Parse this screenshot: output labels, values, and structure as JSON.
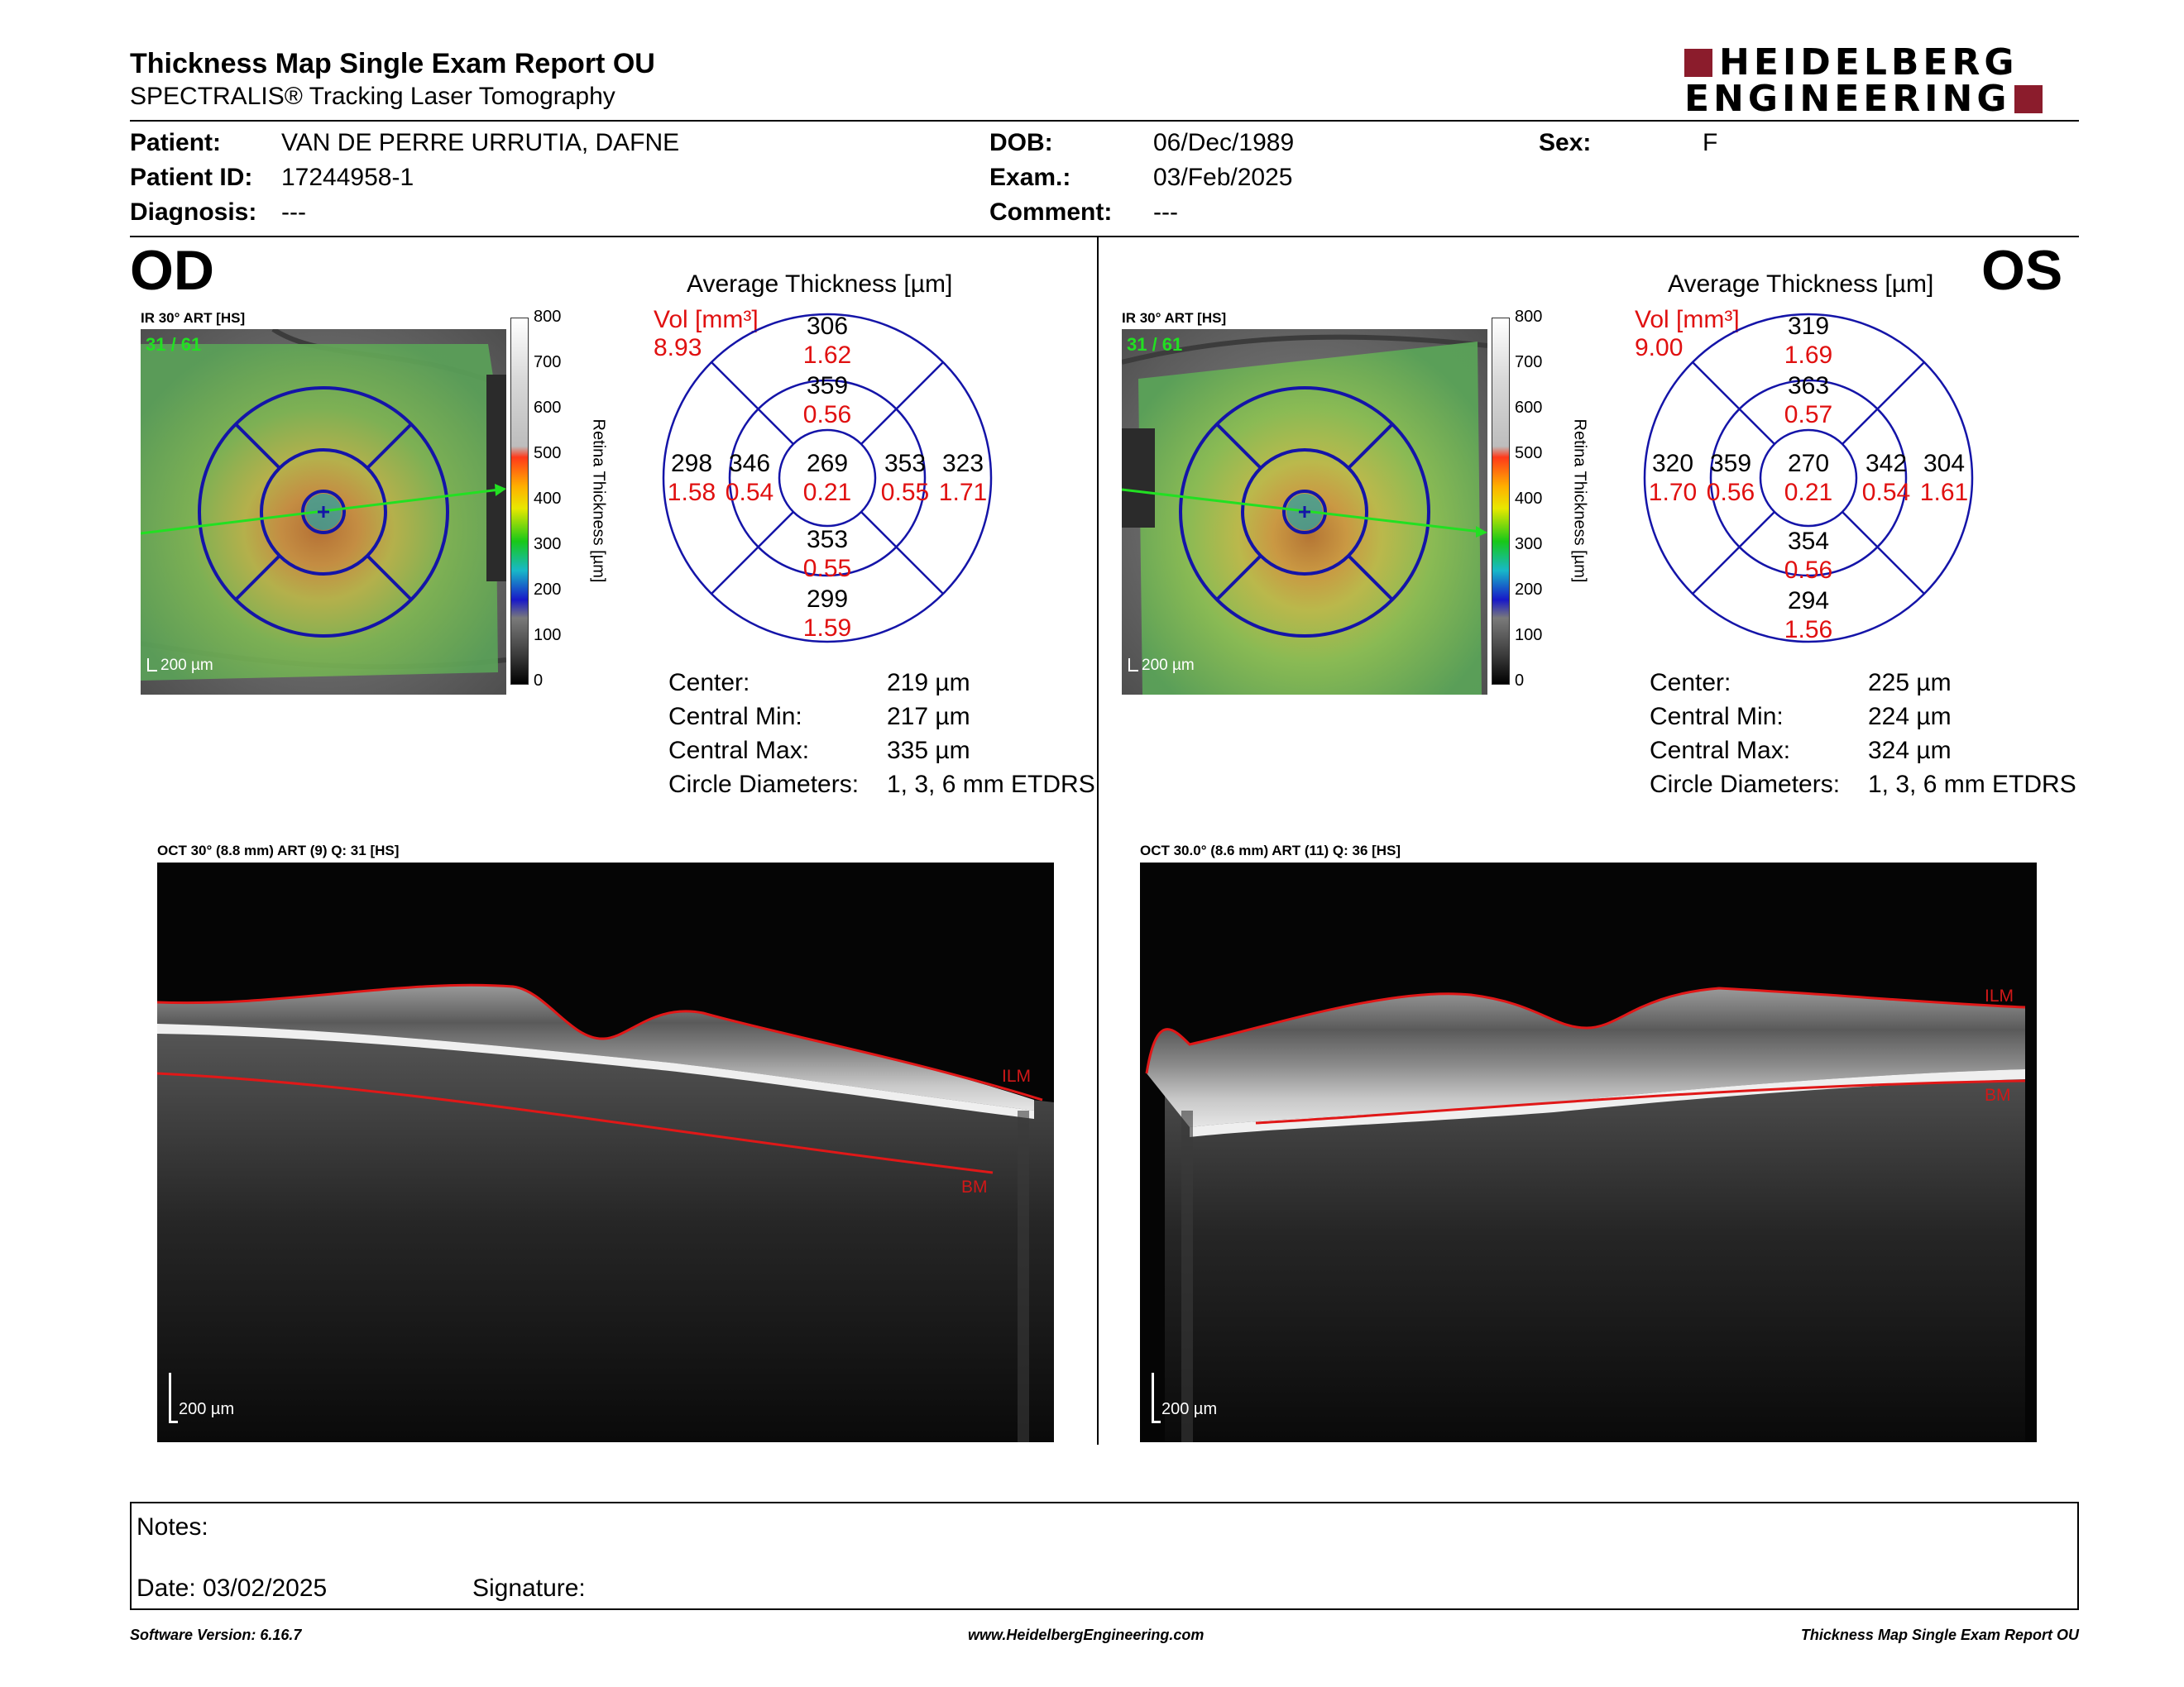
{
  "header": {
    "title": "Thickness Map Single Exam Report OU",
    "subtitle": "SPECTRALIS® Tracking Laser Tomography",
    "logo_line1": "HEIDELBERG",
    "logo_line2": "ENGINEERING",
    "brand_color": "#8b1c2c"
  },
  "patient": {
    "patient_label": "Patient:",
    "patient_value": "VAN DE PERRE URRUTIA, DAFNE",
    "patient_id_label": "Patient ID:",
    "patient_id_value": "17244958-1",
    "diagnosis_label": "Diagnosis:",
    "diagnosis_value": "---",
    "dob_label": "DOB:",
    "dob_value": "06/Dec/1989",
    "exam_label": "Exam.:",
    "exam_value": "03/Feb/2025",
    "comment_label": "Comment:",
    "comment_value": "---",
    "sex_label": "Sex:",
    "sex_value": "F"
  },
  "od": {
    "eye": "OD",
    "ir_label": "IR 30° ART [HS]",
    "frame_counter": "31 / 61",
    "scale_bar": "200 µm",
    "colorbar_ticks": [
      "800",
      "700",
      "600",
      "500",
      "400",
      "300",
      "200",
      "100",
      "0"
    ],
    "colorbar_title": "Retina Thickness [µm]",
    "avg_title": "Average Thickness [µm]",
    "vol_label": "Vol [mm³]",
    "vol_value": "8.93",
    "sectors": {
      "outer_top": {
        "t": "306",
        "v": "1.62"
      },
      "inner_top": {
        "t": "359",
        "v": "0.56"
      },
      "center": {
        "t": "269",
        "v": "0.21"
      },
      "inner_bottom": {
        "t": "353",
        "v": "0.55"
      },
      "outer_bottom": {
        "t": "299",
        "v": "1.59"
      },
      "outer_left": {
        "t": "298",
        "v": "1.58"
      },
      "inner_left": {
        "t": "346",
        "v": "0.54"
      },
      "inner_right": {
        "t": "353",
        "v": "0.55"
      },
      "outer_right": {
        "t": "323",
        "v": "1.71"
      }
    },
    "stats": {
      "center_label": "Center:",
      "center_value": "219 µm",
      "cmin_label": "Central Min:",
      "cmin_value": "217 µm",
      "cmax_label": "Central Max:",
      "cmax_value": "335 µm",
      "diam_label": "Circle Diameters:",
      "diam_value": "1, 3, 6 mm ETDRS"
    },
    "oct_label": "OCT 30° (8.8 mm) ART (9) Q: 31 [HS]",
    "ilm": "ILM",
    "bm": "BM",
    "oct_scale": "200 µm"
  },
  "os": {
    "eye": "OS",
    "ir_label": "IR 30° ART [HS]",
    "frame_counter": "31 / 61",
    "scale_bar": "200 µm",
    "colorbar_ticks": [
      "800",
      "700",
      "600",
      "500",
      "400",
      "300",
      "200",
      "100",
      "0"
    ],
    "colorbar_title": "Retina Thickness [µm]",
    "avg_title": "Average Thickness [µm]",
    "vol_label": "Vol [mm³]",
    "vol_value": "9.00",
    "sectors": {
      "outer_top": {
        "t": "319",
        "v": "1.69"
      },
      "inner_top": {
        "t": "363",
        "v": "0.57"
      },
      "center": {
        "t": "270",
        "v": "0.21"
      },
      "inner_bottom": {
        "t": "354",
        "v": "0.56"
      },
      "outer_bottom": {
        "t": "294",
        "v": "1.56"
      },
      "outer_left": {
        "t": "320",
        "v": "1.70"
      },
      "inner_left": {
        "t": "359",
        "v": "0.56"
      },
      "inner_right": {
        "t": "342",
        "v": "0.54"
      },
      "outer_right": {
        "t": "304",
        "v": "1.61"
      }
    },
    "stats": {
      "center_label": "Center:",
      "center_value": "225 µm",
      "cmin_label": "Central Min:",
      "cmin_value": "224 µm",
      "cmax_label": "Central Max:",
      "cmax_value": "324 µm",
      "diam_label": "Circle Diameters:",
      "diam_value": "1, 3, 6 mm ETDRS"
    },
    "oct_label": "OCT 30.0° (8.6 mm) ART (11) Q: 36 [HS]",
    "ilm": "ILM",
    "bm": "BM",
    "oct_scale": "200 µm"
  },
  "notes": {
    "notes_label": "Notes:",
    "date_label": "Date: 03/02/2025",
    "signature_label": "Signature:"
  },
  "footer": {
    "software": "Software Version: 6.16.7",
    "website": "www.HeidelbergEngineering.com",
    "report": "Thickness Map Single Exam Report OU"
  }
}
